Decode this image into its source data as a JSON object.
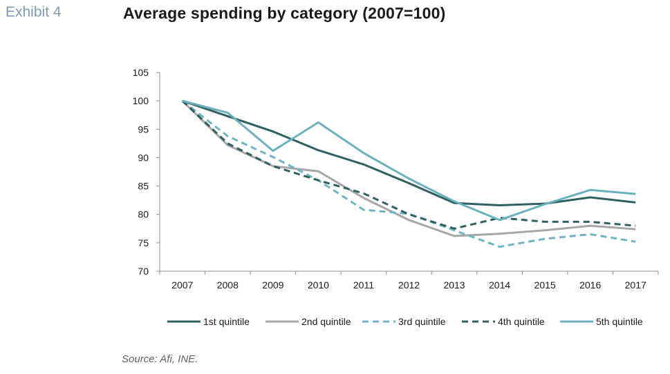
{
  "header": {
    "exhibit_label": "Exhibit 4",
    "title": "Average spending by category (2007=100)"
  },
  "footer": {
    "source": "Source: Afi, INE."
  },
  "chart_data": {
    "type": "line",
    "title": "Average spending by category (2007=100)",
    "xlabel": "",
    "ylabel": "",
    "x": [
      "2007",
      "2008",
      "2009",
      "2010",
      "2011",
      "2012",
      "2013",
      "2014",
      "2015",
      "2016",
      "2017"
    ],
    "ylim": [
      70,
      105
    ],
    "yticks": [
      70,
      75,
      80,
      85,
      90,
      95,
      100,
      105
    ],
    "grid": false,
    "legend_position": "bottom",
    "series": [
      {
        "name": "1st quintile",
        "color": "#2f5f5f",
        "dash": "solid",
        "values": [
          100,
          97.3,
          94.6,
          91.3,
          88.8,
          85.5,
          82.0,
          81.6,
          81.9,
          83.0,
          82.1
        ]
      },
      {
        "name": "2nd quintile",
        "color": "#a6a6a6",
        "dash": "solid",
        "values": [
          100,
          92.2,
          88.5,
          87.6,
          82.9,
          79.0,
          76.2,
          76.6,
          77.2,
          78.0,
          77.4
        ]
      },
      {
        "name": "3rd quintile",
        "color": "#6fb4c0",
        "dash": "dashed",
        "values": [
          100,
          93.8,
          90.1,
          86.0,
          80.8,
          80.1,
          77.2,
          74.3,
          75.7,
          76.5,
          75.2
        ]
      },
      {
        "name": "4th quintile",
        "color": "#2f5f5f",
        "dash": "dashed",
        "values": [
          100,
          92.5,
          88.5,
          86.0,
          83.7,
          80.0,
          77.5,
          79.4,
          78.7,
          78.7,
          78.0
        ]
      },
      {
        "name": "5th quintile",
        "color": "#6cb0bc",
        "dash": "solid",
        "values": [
          100,
          97.9,
          91.2,
          96.2,
          90.8,
          86.3,
          82.3,
          79.0,
          81.8,
          84.3,
          83.6
        ]
      }
    ]
  }
}
